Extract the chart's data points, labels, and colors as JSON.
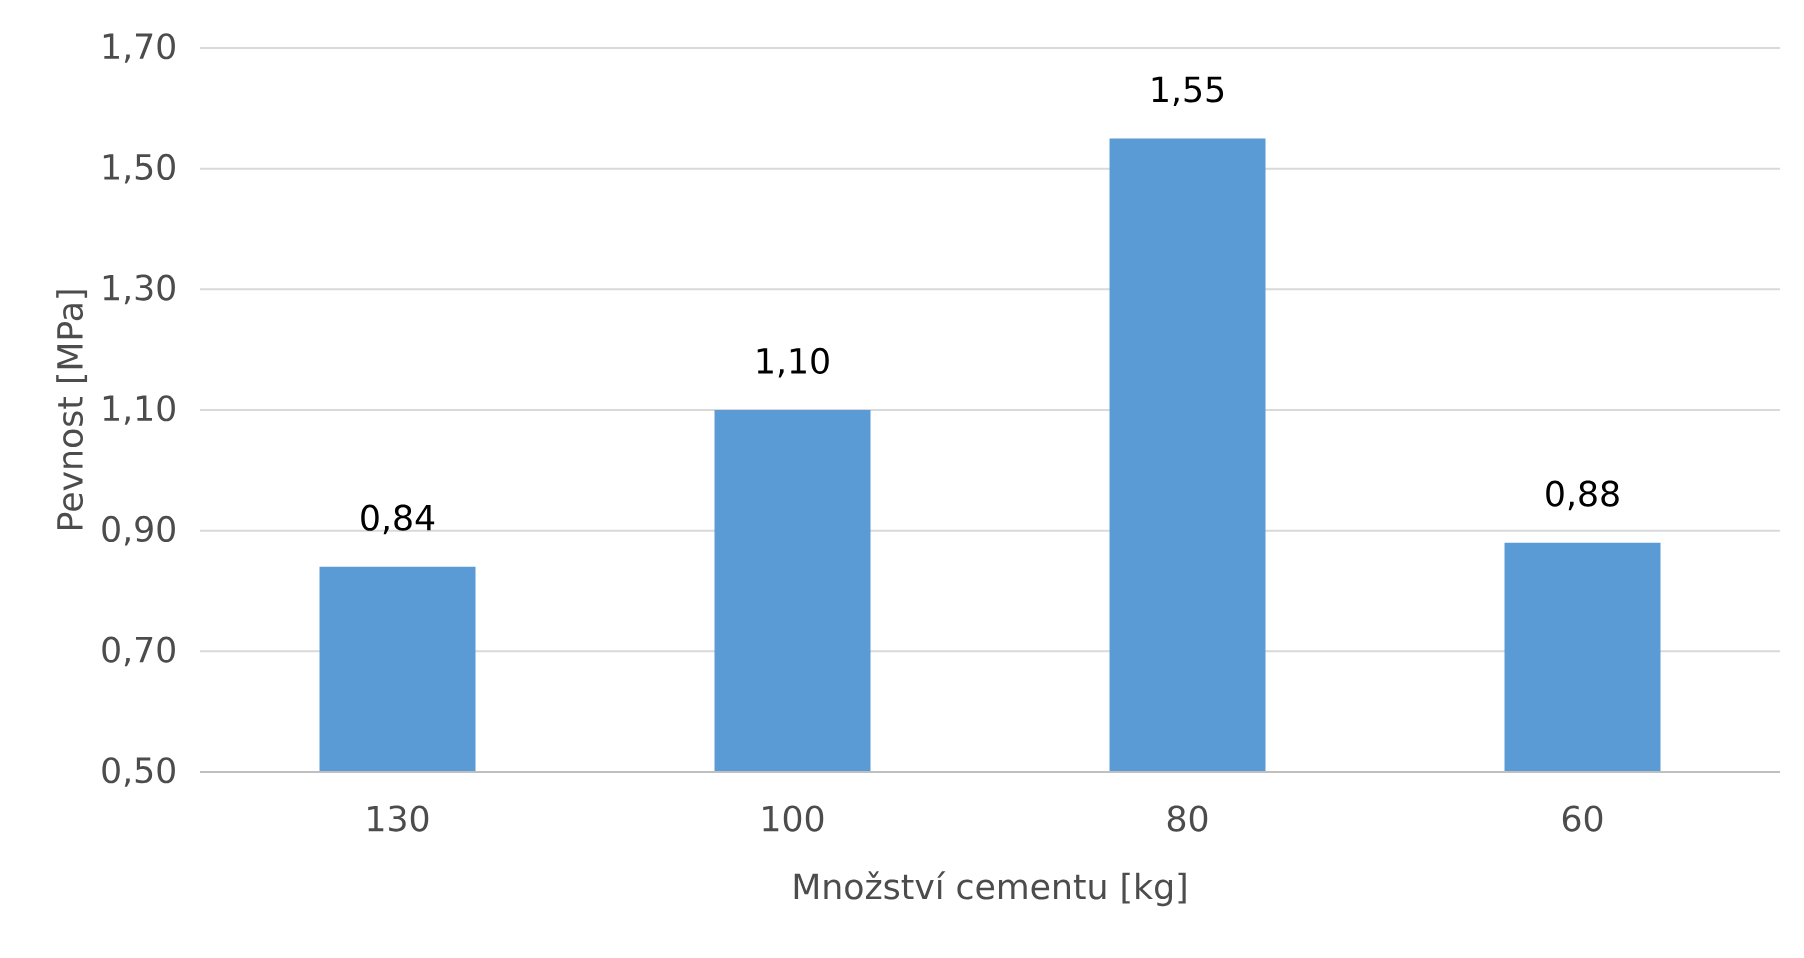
{
  "chart_data": {
    "type": "bar",
    "xlabel": "Množství cementu [kg]",
    "ylabel": "Pevnost [MPa]",
    "categories": [
      "130",
      "100",
      "80",
      "60"
    ],
    "values": [
      0.84,
      1.1,
      1.55,
      0.88
    ],
    "value_labels": [
      "0,84",
      "1,10",
      "1,55",
      "0,88"
    ],
    "color": "#5b9bd5",
    "ylim": [
      0.5,
      1.7
    ],
    "yticks": [
      {
        "value": 0.5,
        "label": "0,50"
      },
      {
        "value": 0.7,
        "label": "0,70"
      },
      {
        "value": 0.9,
        "label": "0,90"
      },
      {
        "value": 1.1,
        "label": "1,10"
      },
      {
        "value": 1.3,
        "label": "1,30"
      },
      {
        "value": 1.5,
        "label": "1,50"
      },
      {
        "value": 1.7,
        "label": "1,70"
      }
    ],
    "grid": "y"
  }
}
